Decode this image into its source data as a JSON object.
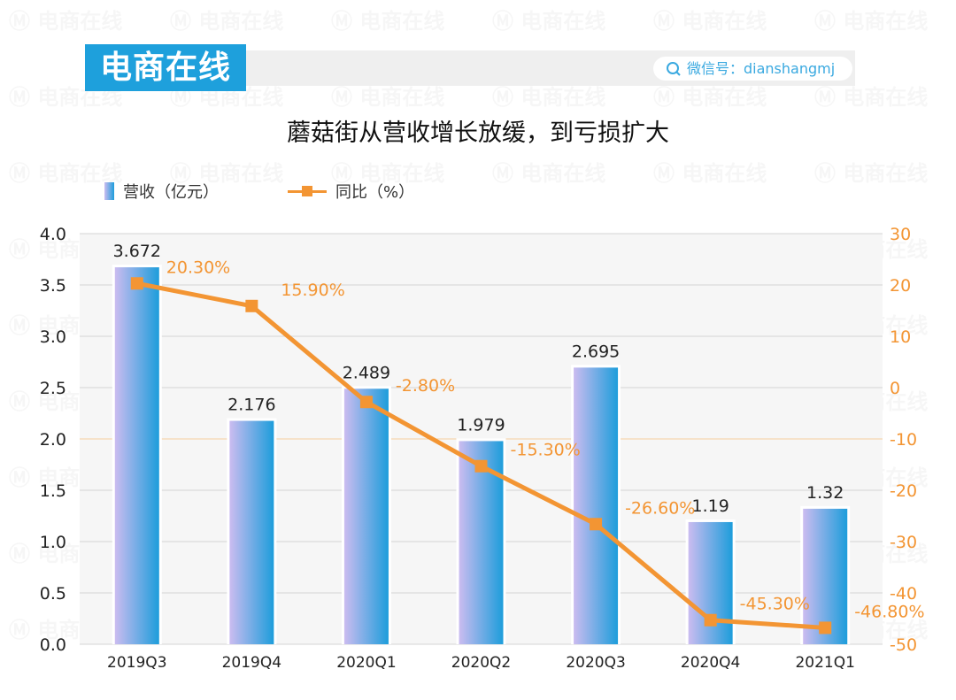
{
  "header": {
    "brand": "电商在线",
    "wechat_label": "微信号：dianshangmj",
    "search_icon": "search-icon",
    "watermark": "电商在线"
  },
  "chart_data": {
    "type": "bar+line",
    "title": "蘑菇街从营收增长放缓，到亏损扩大",
    "categories": [
      "2019Q3",
      "2019Q4",
      "2020Q1",
      "2020Q2",
      "2020Q3",
      "2020Q4",
      "2021Q1"
    ],
    "series": [
      {
        "name": "营收（亿元）",
        "type": "bar",
        "axis": "left",
        "values": [
          3.672,
          2.176,
          2.489,
          1.979,
          2.695,
          1.19,
          1.32
        ],
        "labels": [
          "3.672",
          "2.176",
          "2.489",
          "1.979",
          "2.695",
          "1.19",
          "1.32"
        ],
        "color_from": "#cbbcf0",
        "color_to": "#1d9ddb"
      },
      {
        "name": "同比（%）",
        "type": "line",
        "axis": "right",
        "values": [
          20.3,
          15.9,
          -2.8,
          -15.3,
          -26.6,
          -45.3,
          -46.8
        ],
        "labels": [
          "20.30%",
          "15.90%",
          "-2.80%",
          "-15.30%",
          "-26.60%",
          "-45.30%",
          "-46.80%"
        ],
        "color": "#f39533"
      }
    ],
    "left_axis": {
      "ylim": [
        0,
        4.0
      ],
      "ticks": [
        "0.0",
        "0.5",
        "1.0",
        "1.5",
        "2.0",
        "2.5",
        "3.0",
        "3.5",
        "4.0"
      ]
    },
    "right_axis": {
      "ylim": [
        -50,
        30
      ],
      "ticks": [
        "-50",
        "-40",
        "-30",
        "-20",
        "-10",
        "0",
        "10",
        "20",
        "30"
      ],
      "color": "#f39533"
    },
    "grid": true,
    "legend": "top-left"
  }
}
